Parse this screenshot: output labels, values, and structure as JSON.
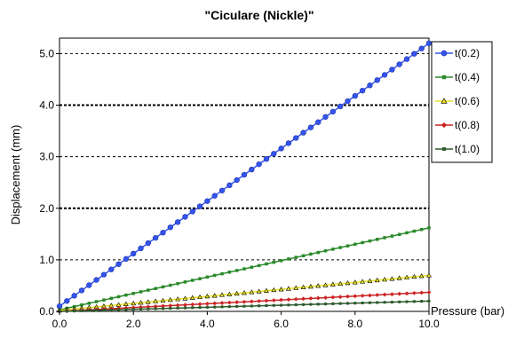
{
  "chart_data": {
    "type": "line",
    "title": "\"Ciculare (Nickle)\"",
    "xlabel": "Pressure (bar)",
    "ylabel": "Displacement (mm)",
    "xlim": [
      0,
      10
    ],
    "ylim": [
      0,
      5.3
    ],
    "x_ticks": [
      "0.0",
      "2.0",
      "4.0",
      "6.0",
      "8.0",
      "10.0"
    ],
    "y_ticks": [
      "0.0",
      "1.0",
      "2.0",
      "3.0",
      "4.0",
      "5.0"
    ],
    "grid": "horizontal dashed",
    "legend_position": "right",
    "series": [
      {
        "name": "t(0.2)",
        "color": "#3355ee",
        "marker": "circle",
        "x": [
          0,
          10
        ],
        "y": [
          0.1,
          5.2
        ]
      },
      {
        "name": "t(0.4)",
        "color": "#2a8a2a",
        "marker": "square",
        "x": [
          0,
          10
        ],
        "y": [
          0.03,
          1.62
        ]
      },
      {
        "name": "t(0.6)",
        "color": "#e8e020",
        "marker": "triangle",
        "x": [
          0,
          10
        ],
        "y": [
          0.02,
          0.7
        ]
      },
      {
        "name": "t(0.8)",
        "color": "#cc2222",
        "marker": "diamond",
        "x": [
          0,
          10
        ],
        "y": [
          0.0,
          0.37
        ]
      },
      {
        "name": "t(1.0)",
        "color": "#2d5a2d",
        "marker": "square-small",
        "x": [
          0,
          10
        ],
        "y": [
          0.0,
          0.2
        ]
      }
    ]
  }
}
